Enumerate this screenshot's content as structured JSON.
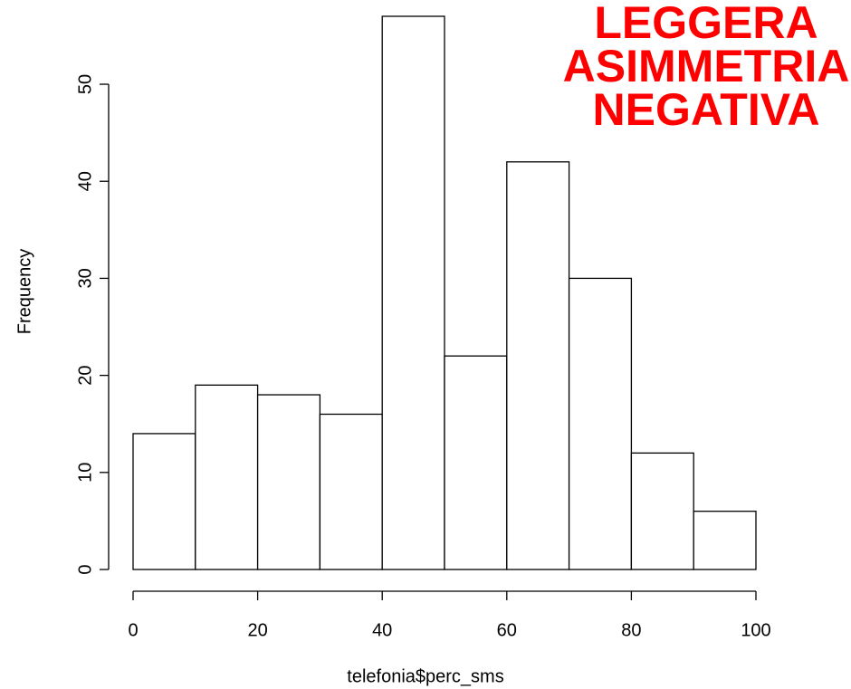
{
  "chart_data": {
    "type": "histogram",
    "xlabel": "telefonia$perc_sms",
    "ylabel": "Frequency",
    "annotation": [
      "LEGGERA",
      "ASIMMETRIA",
      "NEGATIVA"
    ],
    "bins": [
      0,
      10,
      20,
      30,
      40,
      50,
      60,
      70,
      80,
      90,
      100
    ],
    "values": [
      14,
      19,
      18,
      16,
      57,
      22,
      42,
      30,
      12,
      6
    ],
    "color": "#ffffff",
    "xlim": [
      0,
      100
    ],
    "xticks": [
      0,
      20,
      40,
      60,
      80,
      100
    ],
    "ylim": [
      0,
      57
    ],
    "yticks": [
      0,
      10,
      20,
      30,
      40,
      50
    ]
  }
}
